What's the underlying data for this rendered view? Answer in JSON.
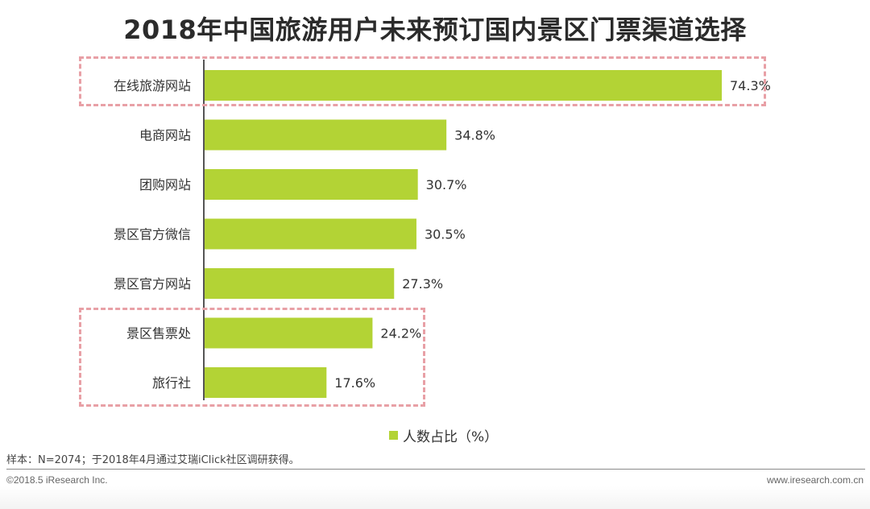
{
  "title": "2018年中国旅游用户未来预订国内景区门票渠道选择",
  "chart_data": {
    "type": "bar",
    "orientation": "horizontal",
    "categories": [
      "在线旅游网站",
      "电商网站",
      "团购网站",
      "景区官方微信",
      "景区官方网站",
      "景区售票处",
      "旅行社"
    ],
    "series": [
      {
        "name": "人数占比（%）",
        "values": [
          74.3,
          34.8,
          30.7,
          30.5,
          27.3,
          24.2,
          17.6
        ]
      }
    ],
    "value_labels": [
      "74.3%",
      "34.8%",
      "30.7%",
      "30.5%",
      "27.3%",
      "24.2%",
      "17.6%"
    ],
    "xlim": [
      0,
      74.3
    ],
    "grid": false,
    "legend_position": "bottom-center",
    "highlighted_categories": [
      [
        "在线旅游网站"
      ],
      [
        "景区售票处",
        "旅行社"
      ]
    ],
    "colors": {
      "bar": "#b3d335",
      "highlight_box": "#e8a0a6",
      "axis": "#555555"
    }
  },
  "legend": {
    "label": "人数占比（%）"
  },
  "note": "样本：N=2074；于2018年4月通过艾瑞iClick社区调研获得。",
  "footer": {
    "left": "©2018.5 iResearch Inc.",
    "right": "www.iresearch.com.cn"
  }
}
